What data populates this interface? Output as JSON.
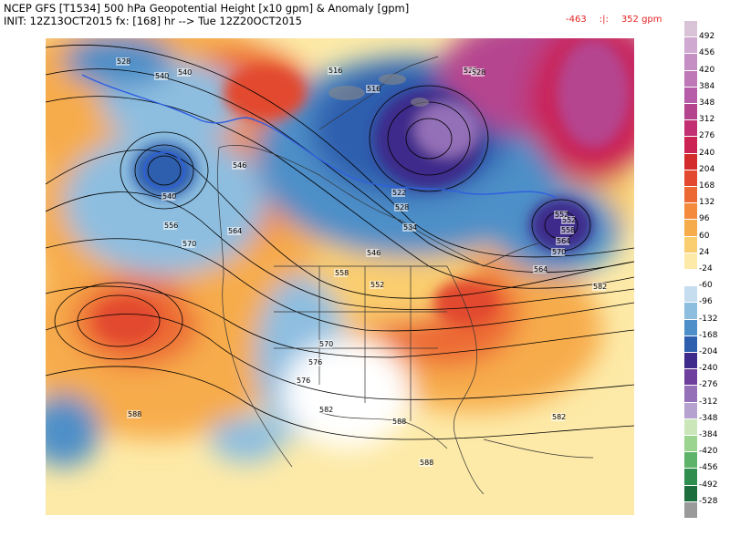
{
  "header": {
    "line1": "NCEP GFS [T1534] 500 hPa Geopotential Height [x10 gpm] & Anomaly [gpm]",
    "line2": "INIT: 12Z13OCT2015 fx: [168] hr --> Tue 12Z20OCT2015",
    "range_min": "-463",
    "range_sep": ":|:",
    "range_max": "352 gpm"
  },
  "colorbar": {
    "labels": [
      "492",
      "456",
      "420",
      "384",
      "348",
      "312",
      "276",
      "240",
      "204",
      "168",
      "132",
      "96",
      "60",
      "24",
      "-24",
      "-60",
      "-96",
      "-132",
      "-168",
      "-204",
      "-240",
      "-276",
      "-312",
      "-348",
      "-384",
      "-420",
      "-456",
      "-492",
      "-528"
    ],
    "colors": [
      "#d8c3d7",
      "#cfa9cf",
      "#c58fc3",
      "#be77b7",
      "#b65ca8",
      "#b5448f",
      "#c22f73",
      "#cb2454",
      "#d32b2b",
      "#e2492e",
      "#ec6934",
      "#f38a3c",
      "#f7ac4c",
      "#facd6e",
      "#fdeaa8",
      "#ffffff",
      "#c6dcef",
      "#8dbee0",
      "#4d8fc8",
      "#2d5fae",
      "#3e2a8a",
      "#6f3f9e",
      "#9470b8",
      "#b6a2cf",
      "#cbe7b9",
      "#9bd48e",
      "#5db36a",
      "#2e8d4f",
      "#1c6f3d",
      "#9a9a9a"
    ]
  },
  "map": {
    "height_labels": [
      "528",
      "540",
      "516",
      "516",
      "522",
      "528",
      "546",
      "540",
      "556",
      "552",
      "564",
      "540",
      "522",
      "528",
      "534",
      "546",
      "552",
      "558",
      "570",
      "564",
      "552",
      "558",
      "570",
      "564",
      "576",
      "582",
      "570",
      "576",
      "582",
      "588",
      "582",
      "588",
      "588"
    ]
  }
}
